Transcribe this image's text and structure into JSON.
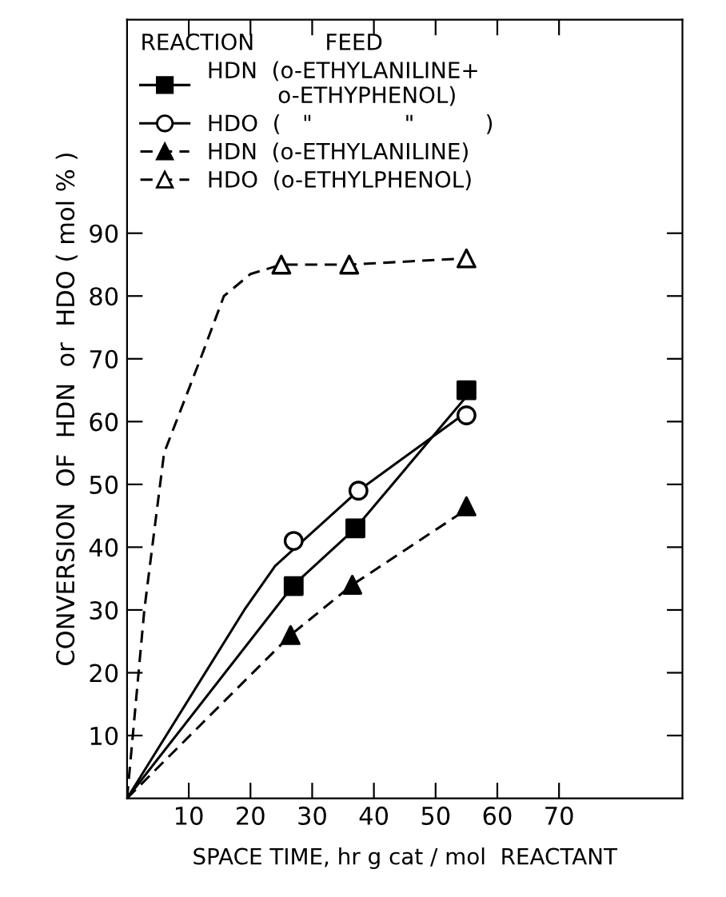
{
  "chart_data": {
    "type": "scatter",
    "xlabel": "SPACE TIME, hr g cat / mol  REACTANT",
    "ylabel": "CONVERSION  OF  HDN  or  HDO ( mol % )",
    "legend_title": "REACTION          FEED",
    "xlim": [
      0,
      90
    ],
    "ylim": [
      0,
      124
    ],
    "xticks": [
      10,
      20,
      30,
      40,
      50,
      60,
      70
    ],
    "yticks": [
      10,
      20,
      30,
      40,
      50,
      60,
      70,
      80,
      90
    ],
    "grid": false,
    "legend": "top left",
    "series": [
      {
        "name": "HDN  (o-ETHYLANILINE+\n          o-ETHYPHENOL)",
        "color": "#000000",
        "marker": "square",
        "line_style": "solid",
        "x": [
          27,
          37,
          55
        ],
        "values": [
          33.8,
          43,
          65
        ]
      },
      {
        "name": "HDO  (   \"             \"          )",
        "color": "#ffffff",
        "marker": "circle",
        "line_style": "solid",
        "x": [
          27,
          37.5,
          55
        ],
        "values": [
          41,
          49,
          61
        ]
      },
      {
        "name": "HDN  (o-ETHYLANILINE)",
        "color": "#000000",
        "marker": "triangle",
        "line_style": "dashed",
        "x": [
          26.5,
          36.5,
          55
        ],
        "values": [
          26,
          34,
          46.5
        ]
      },
      {
        "name": "HDO  (o-ETHYLPHENOL)",
        "color": "#ffffff",
        "marker": "triangle",
        "line_style": "dashed",
        "x": [
          25,
          36,
          55
        ],
        "values": [
          85,
          85,
          86
        ]
      },
      {
        "type": "line",
        "color": "#000000",
        "marker": "none",
        "line_style": "solid",
        "x": [
          0,
          27,
          37,
          55
        ],
        "values": [
          0,
          34,
          43,
          64
        ]
      },
      {
        "type": "line",
        "color": "#000000",
        "marker": "none",
        "line_style": "solid",
        "x": [
          0,
          19,
          24,
          37.5,
          55
        ],
        "values": [
          0,
          30,
          37,
          49,
          61.5
        ]
      },
      {
        "type": "line",
        "color": "#000000",
        "marker": "none",
        "line_style": "dashed",
        "x": [
          0,
          26.5,
          36.5,
          55
        ],
        "values": [
          0,
          26,
          34,
          46
        ]
      },
      {
        "type": "line",
        "color": "#000000",
        "marker": "none",
        "line_style": "dashed",
        "x": [
          0,
          2.8,
          6,
          11.9,
          15.7,
          20,
          25,
          36,
          55
        ],
        "values": [
          0,
          30,
          55,
          70,
          80,
          83.5,
          85,
          85,
          86
        ]
      }
    ]
  }
}
